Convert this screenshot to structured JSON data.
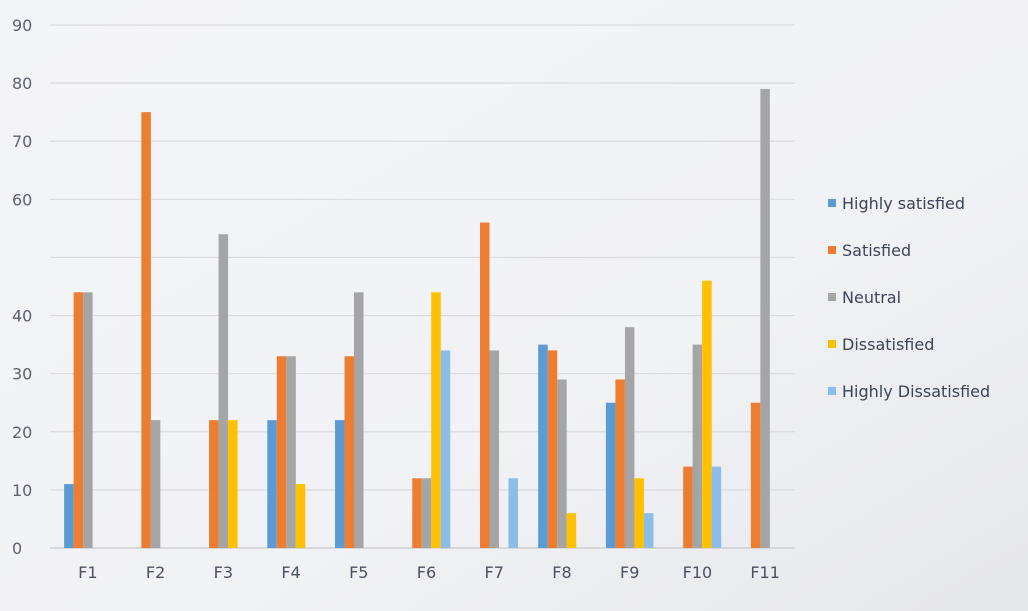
{
  "chart_data": {
    "type": "bar",
    "title": "",
    "xlabel": "",
    "ylabel": "",
    "ylim": [
      0,
      90
    ],
    "yticks": [
      0,
      10,
      20,
      30,
      40,
      60,
      70,
      80,
      90
    ],
    "grid": true,
    "legend_position": "right",
    "categories": [
      "F1",
      "F2",
      "F3",
      "F4",
      "F5",
      "F6",
      "F7",
      "F8",
      "F9",
      "F10",
      "F11"
    ],
    "series": [
      {
        "name": "Highly satisfied",
        "color": "#5b9bd5",
        "values": [
          11,
          0,
          0,
          22,
          22,
          0,
          0,
          35,
          25,
          0,
          0
        ]
      },
      {
        "name": "Satisfied",
        "color": "#ed7d31",
        "values": [
          44,
          75,
          22,
          33,
          33,
          12,
          56,
          34,
          29,
          14,
          25
        ]
      },
      {
        "name": "Neutral",
        "color": "#a5a5a5",
        "values": [
          44,
          22,
          54,
          33,
          44,
          12,
          34,
          29,
          38,
          35,
          79
        ]
      },
      {
        "name": "Dissatisfied",
        "color": "#ffc000",
        "values": [
          0,
          0,
          22,
          11,
          0,
          44,
          0,
          6,
          12,
          46,
          0
        ]
      },
      {
        "name": "Highly Dissatisfied",
        "color": "#8bbde8",
        "values": [
          0,
          0,
          0,
          0,
          0,
          34,
          12,
          0,
          6,
          14,
          0
        ]
      }
    ]
  }
}
